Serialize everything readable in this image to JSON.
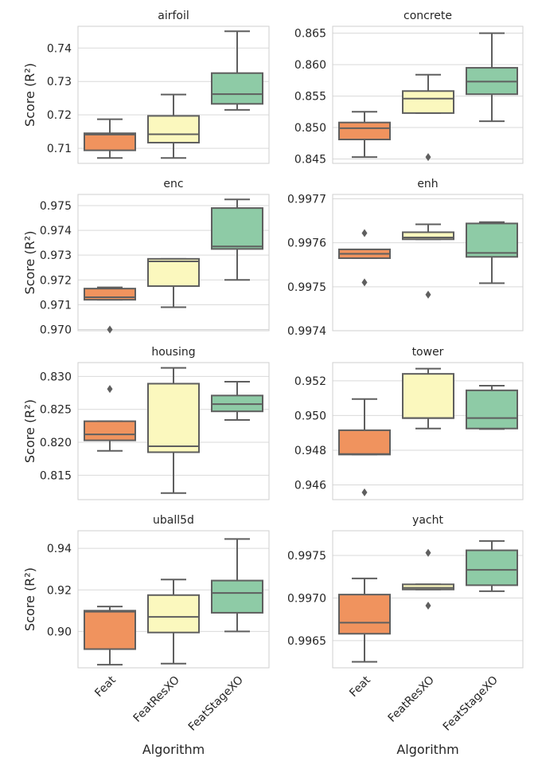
{
  "figure": {
    "xlabel": "Algorithm",
    "ylabel": "Score (R²)",
    "categories": [
      "Feat",
      "FeatResXO",
      "FeatStageXO"
    ],
    "colors": [
      "#f0935e",
      "#fbf8be",
      "#8ecba6"
    ]
  },
  "chart_data": [
    {
      "type": "box",
      "title": "airfoil",
      "ylim": [
        0.7055,
        0.7465
      ],
      "yticks": [
        "0.71",
        "0.72",
        "0.73",
        "0.74"
      ],
      "ytick_values": [
        0.71,
        0.72,
        0.73,
        0.74
      ],
      "series": [
        {
          "category": "Feat",
          "whisker_low": 0.7071,
          "q1": 0.7094,
          "median": 0.7141,
          "q3": 0.7145,
          "whisker_high": 0.7187,
          "outliers": []
        },
        {
          "category": "FeatResXO",
          "whisker_low": 0.7071,
          "q1": 0.7117,
          "median": 0.7142,
          "q3": 0.7197,
          "whisker_high": 0.7261,
          "outliers": []
        },
        {
          "category": "FeatStageXO",
          "whisker_low": 0.7215,
          "q1": 0.7233,
          "median": 0.7262,
          "q3": 0.7325,
          "whisker_high": 0.745,
          "outliers": []
        }
      ]
    },
    {
      "type": "box",
      "title": "concrete",
      "ylim": [
        0.8443,
        0.8661
      ],
      "yticks": [
        "0.845",
        "0.850",
        "0.855",
        "0.860",
        "0.865"
      ],
      "ytick_values": [
        0.845,
        0.85,
        0.855,
        0.86,
        0.865
      ],
      "series": [
        {
          "category": "Feat",
          "whisker_low": 0.8453,
          "q1": 0.8481,
          "median": 0.8499,
          "q3": 0.8508,
          "whisker_high": 0.8525,
          "outliers": []
        },
        {
          "category": "FeatResXO",
          "whisker_low": 0.8523,
          "q1": 0.8523,
          "median": 0.8546,
          "q3": 0.8558,
          "whisker_high": 0.8584,
          "outliers": [
            0.8453
          ]
        },
        {
          "category": "FeatStageXO",
          "whisker_low": 0.851,
          "q1": 0.8553,
          "median": 0.8573,
          "q3": 0.8595,
          "whisker_high": 0.865,
          "outliers": []
        }
      ]
    },
    {
      "type": "box",
      "title": "enc",
      "ylim": [
        0.96995,
        0.97545
      ],
      "yticks": [
        "0.970",
        "0.971",
        "0.972",
        "0.973",
        "0.974",
        "0.975"
      ],
      "ytick_values": [
        0.97,
        0.971,
        0.972,
        0.973,
        0.974,
        0.975
      ],
      "series": [
        {
          "category": "Feat",
          "whisker_low": 0.9712,
          "q1": 0.9712,
          "median": 0.9713,
          "q3": 0.97165,
          "whisker_high": 0.9717,
          "outliers": [
            0.97
          ]
        },
        {
          "category": "FeatResXO",
          "whisker_low": 0.9709,
          "q1": 0.97175,
          "median": 0.97275,
          "q3": 0.97285,
          "whisker_high": 0.97285,
          "outliers": []
        },
        {
          "category": "FeatStageXO",
          "whisker_low": 0.972,
          "q1": 0.97325,
          "median": 0.97335,
          "q3": 0.9749,
          "whisker_high": 0.97525,
          "outliers": []
        }
      ]
    },
    {
      "type": "box",
      "title": "enh",
      "ylim": [
        0.9974,
        0.99771
      ],
      "yticks": [
        "0.9974",
        "0.9975",
        "0.9976",
        "0.9977"
      ],
      "ytick_values": [
        0.9974,
        0.9975,
        0.9976,
        0.9977
      ],
      "series": [
        {
          "category": "Feat",
          "whisker_low": 0.997565,
          "q1": 0.997565,
          "median": 0.997575,
          "q3": 0.997585,
          "whisker_high": 0.997585,
          "outliers": [
            0.997622,
            0.99751
          ]
        },
        {
          "category": "FeatResXO",
          "whisker_low": 0.997608,
          "q1": 0.997608,
          "median": 0.997612,
          "q3": 0.997624,
          "whisker_high": 0.997642,
          "outliers": [
            0.997482
          ]
        },
        {
          "category": "FeatStageXO",
          "whisker_low": 0.997508,
          "q1": 0.997568,
          "median": 0.997577,
          "q3": 0.997644,
          "whisker_high": 0.997647,
          "outliers": []
        }
      ]
    },
    {
      "type": "box",
      "title": "housing",
      "ylim": [
        0.8113,
        0.8321
      ],
      "yticks": [
        "0.815",
        "0.820",
        "0.825",
        "0.830"
      ],
      "ytick_values": [
        0.815,
        0.82,
        0.825,
        0.83
      ],
      "series": [
        {
          "category": "Feat",
          "whisker_low": 0.8187,
          "q1": 0.8203,
          "median": 0.8212,
          "q3": 0.8232,
          "whisker_high": 0.8232,
          "outliers": [
            0.8281
          ]
        },
        {
          "category": "FeatResXO",
          "whisker_low": 0.8123,
          "q1": 0.8185,
          "median": 0.8194,
          "q3": 0.8289,
          "whisker_high": 0.8313,
          "outliers": []
        },
        {
          "category": "FeatStageXO",
          "whisker_low": 0.8234,
          "q1": 0.8247,
          "median": 0.8258,
          "q3": 0.8271,
          "whisker_high": 0.8292,
          "outliers": []
        }
      ]
    },
    {
      "type": "box",
      "title": "tower",
      "ylim": [
        0.94515,
        0.95305
      ],
      "yticks": [
        "0.946",
        "0.948",
        "0.950",
        "0.952"
      ],
      "ytick_values": [
        0.946,
        0.948,
        0.95,
        0.952
      ],
      "series": [
        {
          "category": "Feat",
          "whisker_low": 0.94775,
          "q1": 0.94775,
          "median": 0.94778,
          "q3": 0.94915,
          "whisker_high": 0.95095,
          "outliers": [
            0.94557
          ]
        },
        {
          "category": "FeatResXO",
          "whisker_low": 0.94925,
          "q1": 0.94985,
          "median": 0.94985,
          "q3": 0.9524,
          "whisker_high": 0.9527,
          "outliers": []
        },
        {
          "category": "FeatStageXO",
          "whisker_low": 0.94922,
          "q1": 0.94925,
          "median": 0.94985,
          "q3": 0.95145,
          "whisker_high": 0.95172,
          "outliers": []
        }
      ]
    },
    {
      "type": "box",
      "title": "uball5d",
      "ylim": [
        0.8825,
        0.9485
      ],
      "yticks": [
        "0.90",
        "0.92",
        "0.94"
      ],
      "ytick_values": [
        0.9,
        0.92,
        0.94
      ],
      "series": [
        {
          "category": "Feat",
          "whisker_low": 0.884,
          "q1": 0.8915,
          "median": 0.9095,
          "q3": 0.91,
          "whisker_high": 0.912,
          "outliers": []
        },
        {
          "category": "FeatResXO",
          "whisker_low": 0.8845,
          "q1": 0.8995,
          "median": 0.907,
          "q3": 0.9175,
          "whisker_high": 0.925,
          "outliers": []
        },
        {
          "category": "FeatStageXO",
          "whisker_low": 0.9,
          "q1": 0.909,
          "median": 0.9185,
          "q3": 0.9245,
          "whisker_high": 0.9445,
          "outliers": []
        }
      ]
    },
    {
      "type": "box",
      "title": "yacht",
      "ylim": [
        0.99618,
        0.99779
      ],
      "yticks": [
        "0.9965",
        "0.9970",
        "0.9975"
      ],
      "ytick_values": [
        0.9965,
        0.997,
        0.9975
      ],
      "series": [
        {
          "category": "Feat",
          "whisker_low": 0.99625,
          "q1": 0.99658,
          "median": 0.99671,
          "q3": 0.99704,
          "whisker_high": 0.99723,
          "outliers": []
        },
        {
          "category": "FeatResXO",
          "whisker_low": 0.9971,
          "q1": 0.9971,
          "median": 0.99712,
          "q3": 0.99716,
          "whisker_high": 0.99716,
          "outliers": [
            0.99753,
            0.99691
          ]
        },
        {
          "category": "FeatStageXO",
          "whisker_low": 0.99708,
          "q1": 0.99715,
          "median": 0.99733,
          "q3": 0.99756,
          "whisker_high": 0.99767,
          "outliers": []
        }
      ]
    }
  ]
}
